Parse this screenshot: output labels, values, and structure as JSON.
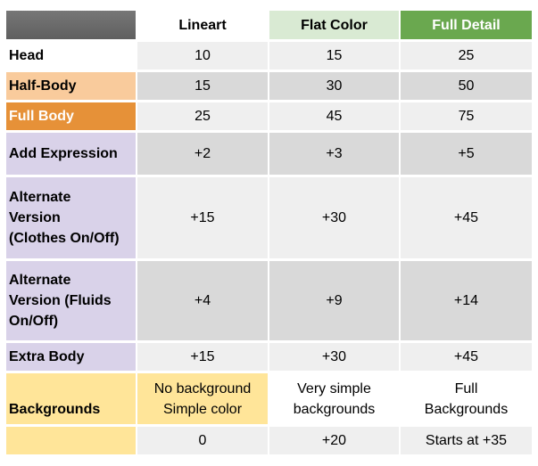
{
  "header": {
    "columns": [
      "Lineart",
      "Flat Color",
      "Full Detail"
    ]
  },
  "rows": [
    {
      "label": "Head",
      "cells": [
        "10",
        "15",
        "25"
      ]
    },
    {
      "label": "Half-Body",
      "cells": [
        "15",
        "30",
        "50"
      ]
    },
    {
      "label": "Full Body",
      "cells": [
        "25",
        "45",
        "75"
      ]
    },
    {
      "label": "Add Expression",
      "cells": [
        "+2",
        "+3",
        "+5"
      ]
    },
    {
      "label": [
        "Alternate",
        "Version",
        "(Clothes On/Off)"
      ],
      "cells": [
        "+15",
        "+30",
        "+45"
      ]
    },
    {
      "label": [
        "Alternate",
        "Version (Fluids",
        "On/Off)"
      ],
      "cells": [
        "+4",
        "+9",
        "+14"
      ]
    },
    {
      "label": "Extra Body",
      "cells": [
        "+15",
        "+30",
        "+45"
      ]
    },
    {
      "label": "Backgrounds",
      "cells": [
        [
          "No background",
          "Simple color"
        ],
        [
          "Very simple",
          "backgrounds"
        ],
        [
          "Full",
          "Backgrounds"
        ]
      ]
    },
    {
      "cells": [
        "0",
        "+20",
        "Starts at +35"
      ]
    }
  ]
}
